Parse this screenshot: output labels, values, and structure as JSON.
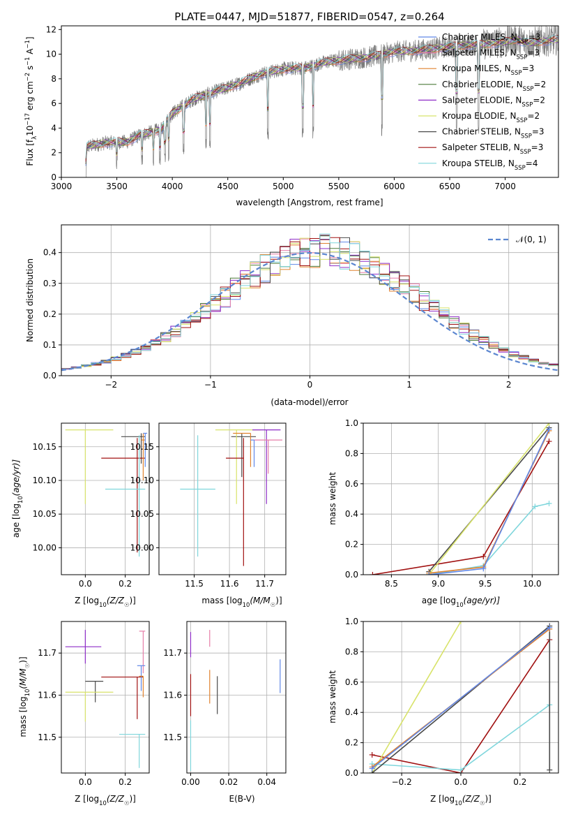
{
  "title": "PLATE=0447, MJD=51877, FIBERID=0547, z=0.264",
  "models": [
    {
      "name": "Chabrier MILES, N",
      "nssp": "=3",
      "color": "#5f87e8"
    },
    {
      "name": "Salpeter MILES, N",
      "nssp": "=3",
      "color": "#e67da8"
    },
    {
      "name": "Kroupa MILES, N",
      "nssp": "=3",
      "color": "#e0822f"
    },
    {
      "name": "Chabrier ELODIE, N",
      "nssp": "=2",
      "color": "#4c7a3a"
    },
    {
      "name": "Salpeter ELODIE, N",
      "nssp": "=2",
      "color": "#8e2cc7"
    },
    {
      "name": "Kroupa ELODIE, N",
      "nssp": "=2",
      "color": "#d8e36a"
    },
    {
      "name": "Chabrier STELIB, N",
      "nssp": "=3",
      "color": "#4a4a4a"
    },
    {
      "name": "Salpeter STELIB, N",
      "nssp": "=3",
      "color": "#a01010"
    },
    {
      "name": "Kroupa STELIB, N",
      "nssp": "=4",
      "color": "#7fd6dc"
    }
  ],
  "nssp_sub": "SSP",
  "chart_data": [
    {
      "id": "spectrum",
      "type": "line",
      "xlabel": "wavelength [Angstrom, rest frame]",
      "ylabel": "Flux [f",
      "ylabel_sub": "λ",
      "ylabel_rest": "10",
      "ylabel_exp1": "−17",
      "ylabel_unit": " erg cm",
      "ylabel_exp2": "−2",
      "ylabel_unit2": " s",
      "ylabel_exp3": "−1",
      "ylabel_unit3": " A",
      "ylabel_exp4": "−1",
      "ylabel_end": "]",
      "xlim": [
        3000,
        7480
      ],
      "ylim": [
        0,
        12.3
      ],
      "xticks": [
        3000,
        3500,
        4000,
        4500,
        5000,
        5500,
        6000,
        6500,
        7000
      ],
      "yticks": [
        0,
        2,
        4,
        6,
        8,
        10,
        12
      ],
      "continuum": [
        [
          3210,
          0
        ],
        [
          3230,
          2.5
        ],
        [
          3400,
          2.8
        ],
        [
          3600,
          2.9
        ],
        [
          3700,
          3.4
        ],
        [
          3900,
          3.9
        ],
        [
          4000,
          5.2
        ],
        [
          4200,
          6.4
        ],
        [
          4400,
          7.0
        ],
        [
          4600,
          7.6
        ],
        [
          4800,
          8.4
        ],
        [
          5000,
          8.8
        ],
        [
          5200,
          8.9
        ],
        [
          5400,
          9.4
        ],
        [
          5600,
          9.6
        ],
        [
          5800,
          9.8
        ],
        [
          6000,
          10.2
        ],
        [
          6200,
          10.3
        ],
        [
          6400,
          10.5
        ],
        [
          6600,
          10.7
        ],
        [
          6800,
          10.8
        ],
        [
          7000,
          11.0
        ],
        [
          7100,
          11.2
        ],
        [
          7200,
          10.9
        ],
        [
          7480,
          11.2
        ]
      ]
    },
    {
      "id": "residuals",
      "type": "histogram",
      "xlabel": "(data-model)/error",
      "ylabel": "Normed distribution",
      "xlim": [
        -2.5,
        2.5
      ],
      "ylim": [
        0,
        0.49
      ],
      "xticks": [
        -2,
        -1,
        0,
        1,
        2
      ],
      "yticks": [
        0.0,
        0.1,
        0.2,
        0.3,
        0.4
      ],
      "bin_width": 0.1,
      "legend": "𝒩(0, 1)",
      "gaussian": {
        "mean": 0,
        "sigma": 1,
        "color": "#5b86d0"
      }
    },
    {
      "id": "age-vs-Z",
      "type": "errorbar",
      "xlabel": "Z [log",
      "xlabel_sub": "10",
      "xlabel_rest": "(Z/Z",
      "xlabel_sun": "☉",
      "xlabel_end": ")]",
      "ylabel": "age  [log",
      "ylabel_sub": "10",
      "ylabel_rest": "(age/yr)]",
      "xlim": [
        -0.12,
        0.32
      ],
      "ylim": [
        9.96,
        10.185
      ],
      "xticks": [
        0.0,
        0.2
      ],
      "yticks": [
        10.0,
        10.05,
        10.1,
        10.15
      ],
      "points": [
        {
          "m": 6,
          "x": 0.28,
          "y": 10.165,
          "xe": [
            0.1,
            0.02
          ],
          "ye": [
            0.04,
            0.005
          ]
        },
        {
          "m": 5,
          "x": 0.0,
          "y": 10.175,
          "xe": [
            0.1,
            0.14
          ],
          "ye": [
            0.11,
            0.0
          ]
        },
        {
          "m": 7,
          "x": 0.26,
          "y": 10.133,
          "xe": [
            0.18,
            0.04
          ],
          "ye": [
            0.14,
            0.03
          ]
        },
        {
          "m": 8,
          "x": 0.27,
          "y": 10.087,
          "xe": [
            0.17,
            0.03
          ],
          "ye": [
            0.1,
            0.08
          ]
        },
        {
          "m": 2,
          "x": 0.29,
          "y": 10.16,
          "xe": [
            0.01,
            0.01
          ],
          "ye": [
            0.06,
            0.01
          ]
        },
        {
          "m": 0,
          "x": 0.3,
          "y": 10.17,
          "xe": [
            0.01,
            0.01
          ],
          "ye": [
            0.05,
            0.0
          ]
        }
      ]
    },
    {
      "id": "age-vs-mass",
      "type": "errorbar",
      "xlabel": "mass [log",
      "xlabel_sub": "10",
      "xlabel_rest": "(M/M",
      "xlabel_sun": "☉",
      "xlabel_end": ")]",
      "ylabel": "",
      "xlim": [
        11.4,
        11.76
      ],
      "ylim": [
        9.96,
        10.185
      ],
      "xticks": [
        11.5,
        11.6,
        11.7
      ],
      "yticks": [
        10.0,
        10.05,
        10.1,
        10.15
      ],
      "points": [
        {
          "m": 6,
          "x": 11.635,
          "y": 10.165,
          "xe": [
            0.03,
            0.04
          ],
          "ye": [
            0.06,
            0.005
          ]
        },
        {
          "m": 5,
          "x": 11.62,
          "y": 10.175,
          "xe": [
            0.06,
            0.07
          ],
          "ye": [
            0.11,
            0.0
          ]
        },
        {
          "m": 7,
          "x": 11.64,
          "y": 10.133,
          "xe": [
            0.05,
            0.0
          ],
          "ye": [
            0.16,
            0.03
          ]
        },
        {
          "m": 8,
          "x": 11.51,
          "y": 10.087,
          "xe": [
            0.05,
            0.05
          ],
          "ye": [
            0.1,
            0.08
          ]
        },
        {
          "m": 4,
          "x": 11.705,
          "y": 10.175,
          "xe": [
            0.04,
            0.04
          ],
          "ye": [
            0.11,
            0.0
          ]
        },
        {
          "m": 1,
          "x": 11.71,
          "y": 10.16,
          "xe": [
            0.04,
            0.04
          ],
          "ye": [
            0.05,
            0.0
          ]
        },
        {
          "m": 2,
          "x": 11.66,
          "y": 10.17,
          "xe": [
            0.05,
            0.0
          ],
          "ye": [
            0.05,
            0.0
          ]
        },
        {
          "m": 0,
          "x": 11.67,
          "y": 10.16,
          "xe": [
            0.01,
            0.0
          ],
          "ye": [
            0.04,
            0.0
          ]
        }
      ]
    },
    {
      "id": "mass-weight-vs-age",
      "type": "line",
      "xlabel": "age  [log",
      "xlabel_sub": "10",
      "xlabel_rest": "(age/yr)]",
      "ylabel": "mass weight",
      "xlim": [
        8.2,
        10.28
      ],
      "ylim": [
        0,
        1.0
      ],
      "xticks": [
        8.5,
        9.0,
        9.5,
        10.0
      ],
      "yticks": [
        0.0,
        0.2,
        0.4,
        0.6,
        0.8,
        1.0
      ],
      "series": [
        {
          "m": 7,
          "x": [
            8.3,
            9.48,
            10.18
          ],
          "y": [
            0.0,
            0.12,
            0.88
          ]
        },
        {
          "m": 8,
          "x": [
            8.9,
            9.48,
            10.03,
            10.18
          ],
          "y": [
            0.0,
            0.06,
            0.45,
            0.47
          ]
        },
        {
          "m": 6,
          "x": [
            8.9,
            10.18
          ],
          "y": [
            0.02,
            0.97
          ]
        },
        {
          "m": 5,
          "x": [
            8.9,
            10.18
          ],
          "y": [
            0.0,
            1.0
          ]
        },
        {
          "m": 2,
          "x": [
            8.9,
            9.48,
            10.18
          ],
          "y": [
            0.01,
            0.05,
            0.95
          ]
        },
        {
          "m": 0,
          "x": [
            8.9,
            9.48,
            10.18
          ],
          "y": [
            0.0,
            0.04,
            0.96
          ]
        }
      ]
    },
    {
      "id": "mass-vs-Z",
      "type": "errorbar",
      "xlabel": "Z [log",
      "xlabel_sub": "10",
      "xlabel_rest": "(Z/Z",
      "xlabel_sun": "☉",
      "xlabel_end": ")]",
      "ylabel": "mass [log",
      "ylabel_sub": "10",
      "ylabel_rest": "(M/M",
      "ylabel_sun": "☉",
      "ylabel_end": ")]",
      "xlim": [
        -0.12,
        0.32
      ],
      "ylim": [
        11.415,
        11.775
      ],
      "xticks": [
        0.0,
        0.2
      ],
      "yticks": [
        11.5,
        11.6,
        11.7
      ],
      "points": [
        {
          "m": 4,
          "x": 0.0,
          "y": 11.715,
          "xe": [
            0.1,
            0.08
          ],
          "ye": [
            0.04,
            0.04
          ]
        },
        {
          "m": 1,
          "x": 0.29,
          "y": 11.752,
          "xe": [
            0.02,
            0.01
          ],
          "ye": [
            0.1,
            0.0
          ]
        },
        {
          "m": 6,
          "x": 0.05,
          "y": 11.633,
          "xe": [
            0.05,
            0.04
          ],
          "ye": [
            0.05,
            0.0
          ]
        },
        {
          "m": 7,
          "x": 0.26,
          "y": 11.643,
          "xe": [
            0.18,
            0.03
          ],
          "ye": [
            0.1,
            0.0
          ]
        },
        {
          "m": 5,
          "x": 0.0,
          "y": 11.607,
          "xe": [
            0.1,
            0.14
          ],
          "ye": [
            0.07,
            0.0
          ]
        },
        {
          "m": 8,
          "x": 0.27,
          "y": 11.507,
          "xe": [
            0.1,
            0.03
          ],
          "ye": [
            0.08,
            0.0
          ]
        },
        {
          "m": 0,
          "x": 0.28,
          "y": 11.67,
          "xe": [
            0.02,
            0.02
          ],
          "ye": [
            0.06,
            0.0
          ]
        },
        {
          "m": 2,
          "x": 0.29,
          "y": 11.645,
          "xe": [
            0.02,
            0.0
          ],
          "ye": [
            0.05,
            0.0
          ]
        }
      ]
    },
    {
      "id": "mass-vs-EBV",
      "type": "errorbar",
      "xlabel": "E(B-V)",
      "ylabel": "",
      "xlim": [
        -0.002,
        0.05
      ],
      "ylim": [
        11.415,
        11.775
      ],
      "xticks": [
        0.0,
        0.02,
        0.04
      ],
      "yticks": [
        11.5,
        11.6,
        11.7
      ],
      "points": [
        {
          "m": 4,
          "x": 0.0,
          "y": 11.72,
          "xe": [
            0,
            0
          ],
          "ye": [
            0.03,
            0.03
          ]
        },
        {
          "m": 7,
          "x": 0.0,
          "y": 11.6,
          "xe": [
            0,
            0
          ],
          "ye": [
            0.05,
            0.05
          ]
        },
        {
          "m": 8,
          "x": 0.0,
          "y": 11.48,
          "xe": [
            0,
            0
          ],
          "ye": [
            0.06,
            0.06
          ]
        },
        {
          "m": 1,
          "x": 0.01,
          "y": 11.735,
          "xe": [
            0,
            0
          ],
          "ye": [
            0.02,
            0.02
          ]
        },
        {
          "m": 2,
          "x": 0.01,
          "y": 11.62,
          "xe": [
            0,
            0
          ],
          "ye": [
            0.04,
            0.04
          ]
        },
        {
          "m": 6,
          "x": 0.014,
          "y": 11.6,
          "xe": [
            0,
            0
          ],
          "ye": [
            0.045,
            0.045
          ]
        },
        {
          "m": 0,
          "x": 0.047,
          "y": 11.645,
          "xe": [
            0,
            0
          ],
          "ye": [
            0.04,
            0.04
          ]
        }
      ]
    },
    {
      "id": "mass-weight-vs-Z",
      "type": "line",
      "xlabel": "Z [log",
      "xlabel_sub": "10",
      "xlabel_rest": "(Z/Z",
      "xlabel_sun": "☉",
      "xlabel_end": ")]",
      "ylabel": "mass weight",
      "xlim": [
        -0.33,
        0.33
      ],
      "ylim": [
        0,
        1.0
      ],
      "xticks": [
        -0.2,
        0.0,
        0.2
      ],
      "yticks": [
        0.0,
        0.2,
        0.4,
        0.6,
        0.8,
        1.0
      ],
      "series": [
        {
          "m": 7,
          "x": [
            -0.3,
            0.0,
            0.3
          ],
          "y": [
            0.12,
            0.0,
            0.88
          ]
        },
        {
          "m": 8,
          "x": [
            -0.3,
            0.0,
            0.3
          ],
          "y": [
            0.06,
            0.02,
            0.45
          ]
        },
        {
          "m": 5,
          "x": [
            -0.3,
            0.0
          ],
          "y": [
            0.0,
            1.0
          ]
        },
        {
          "m": 6,
          "x": [
            -0.3,
            0.3,
            0.3
          ],
          "y": [
            0.0,
            0.97,
            0.02
          ]
        },
        {
          "m": 2,
          "x": [
            -0.3,
            0.3
          ],
          "y": [
            0.04,
            0.95
          ]
        },
        {
          "m": 0,
          "x": [
            -0.3,
            0.3
          ],
          "y": [
            0.03,
            0.96
          ]
        }
      ]
    }
  ]
}
